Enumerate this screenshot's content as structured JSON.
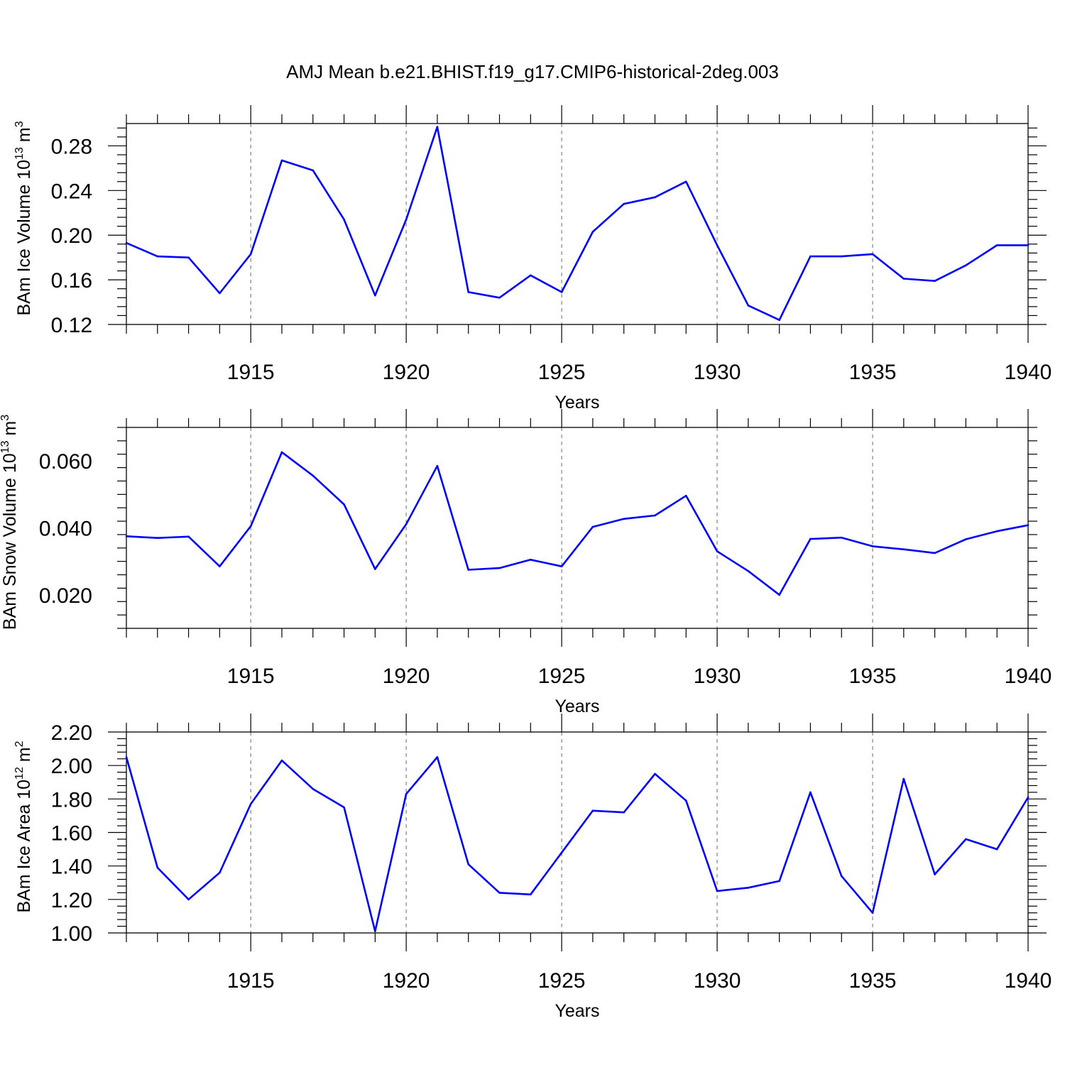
{
  "title": "AMJ Mean b.e21.BHIST.f19_g17.CMIP6-historical-2deg.003",
  "colors": {
    "line": "#0000ff",
    "axis": "#000000",
    "grid": "#777777"
  },
  "chart_data": [
    {
      "type": "line",
      "xlabel": "Years",
      "ylabel_main": "BAm Ice Volume 10",
      "ylabel_exp": "13",
      "ylabel_unit": " m",
      "ylabel_unit_exp": "3",
      "xlim": [
        1911,
        1940
      ],
      "ylim": [
        0.12,
        0.3
      ],
      "xticks": [
        1915,
        1920,
        1925,
        1930,
        1935,
        1940
      ],
      "xtick_labels": [
        "1915",
        "1920",
        "1925",
        "1930",
        "1935",
        "1940"
      ],
      "yticks": [
        0.12,
        0.16,
        0.2,
        0.24,
        0.28
      ],
      "ytick_labels": [
        "0.12",
        "0.16",
        "0.20",
        "0.24",
        "0.28"
      ],
      "grid": "vertical dashed at major x ticks",
      "x": [
        1911,
        1912,
        1913,
        1914,
        1915,
        1916,
        1917,
        1918,
        1919,
        1920,
        1921,
        1922,
        1923,
        1924,
        1925,
        1926,
        1927,
        1928,
        1929,
        1930,
        1931,
        1932,
        1933,
        1934,
        1935,
        1936,
        1937,
        1938,
        1939,
        1940
      ],
      "series": [
        {
          "values": [
            0.193,
            0.181,
            0.18,
            0.148,
            0.183,
            0.267,
            0.258,
            0.214,
            0.146,
            0.214,
            0.297,
            0.149,
            0.144,
            0.164,
            0.149,
            0.203,
            0.228,
            0.234,
            0.248,
            0.191,
            0.137,
            0.124,
            0.181,
            0.181,
            0.183,
            0.161,
            0.159,
            0.173,
            0.191,
            0.191
          ]
        }
      ]
    },
    {
      "type": "line",
      "xlabel": "Years",
      "ylabel_main": "BAm Snow Volume 10",
      "ylabel_exp": "13",
      "ylabel_unit": " m",
      "ylabel_unit_exp": "3",
      "xlim": [
        1911,
        1940
      ],
      "ylim": [
        0.01,
        0.07
      ],
      "xticks": [
        1915,
        1920,
        1925,
        1930,
        1935,
        1940
      ],
      "xtick_labels": [
        "1915",
        "1920",
        "1925",
        "1930",
        "1935",
        "1940"
      ],
      "yticks": [
        0.02,
        0.04,
        0.06
      ],
      "ytick_labels": [
        "0.020",
        "0.040",
        "0.060"
      ],
      "grid": "vertical dashed at major x ticks",
      "x": [
        1911,
        1912,
        1913,
        1914,
        1915,
        1916,
        1917,
        1918,
        1919,
        1920,
        1921,
        1922,
        1923,
        1924,
        1925,
        1926,
        1927,
        1928,
        1929,
        1930,
        1931,
        1932,
        1933,
        1934,
        1935,
        1936,
        1937,
        1938,
        1939,
        1940
      ],
      "series": [
        {
          "values": [
            0.0375,
            0.037,
            0.0374,
            0.0285,
            0.0405,
            0.0626,
            0.0556,
            0.047,
            0.0277,
            0.0411,
            0.0585,
            0.0275,
            0.028,
            0.0305,
            0.0285,
            0.0403,
            0.0427,
            0.0437,
            0.0496,
            0.033,
            0.0271,
            0.02,
            0.0367,
            0.0371,
            0.0345,
            0.0336,
            0.0325,
            0.0366,
            0.039,
            0.0408
          ]
        }
      ]
    },
    {
      "type": "line",
      "xlabel": "Years",
      "ylabel_main": "BAm Ice Area 10",
      "ylabel_exp": "12",
      "ylabel_unit": " m",
      "ylabel_unit_exp": "2",
      "xlim": [
        1911,
        1940
      ],
      "ylim": [
        1.0,
        2.2
      ],
      "xticks": [
        1915,
        1920,
        1925,
        1930,
        1935,
        1940
      ],
      "xtick_labels": [
        "1915",
        "1920",
        "1925",
        "1930",
        "1935",
        "1940"
      ],
      "yticks": [
        1.0,
        1.2,
        1.4,
        1.6,
        1.8,
        2.0,
        2.2
      ],
      "ytick_labels": [
        "1.00",
        "1.20",
        "1.40",
        "1.60",
        "1.80",
        "2.00",
        "2.20"
      ],
      "grid": "vertical dashed at major x ticks",
      "x": [
        1911,
        1912,
        1913,
        1914,
        1915,
        1916,
        1917,
        1918,
        1919,
        1920,
        1921,
        1922,
        1923,
        1924,
        1925,
        1926,
        1927,
        1928,
        1929,
        1930,
        1931,
        1932,
        1933,
        1934,
        1935,
        1936,
        1937,
        1938,
        1939,
        1940
      ],
      "series": [
        {
          "values": [
            2.05,
            1.39,
            1.2,
            1.36,
            1.77,
            2.03,
            1.86,
            1.75,
            1.01,
            1.83,
            2.05,
            1.41,
            1.24,
            1.23,
            1.48,
            1.73,
            1.72,
            1.95,
            1.79,
            1.25,
            1.27,
            1.31,
            1.84,
            1.34,
            1.12,
            1.92,
            1.35,
            1.56,
            1.5,
            1.81
          ]
        }
      ]
    }
  ]
}
